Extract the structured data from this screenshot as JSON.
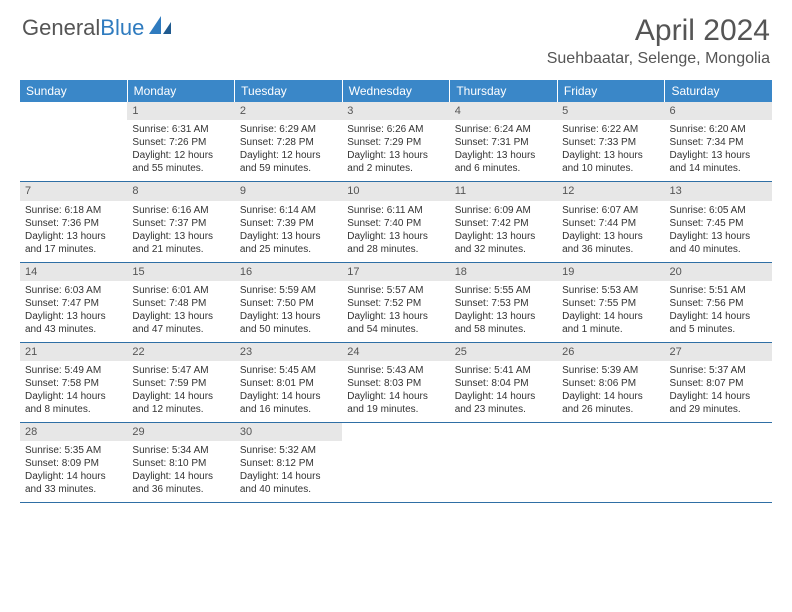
{
  "logo": {
    "text1": "General",
    "text2": "Blue"
  },
  "title": "April 2024",
  "location": "Suehbaatar, Selenge, Mongolia",
  "colors": {
    "header_bg": "#3a87c8",
    "header_text": "#ffffff",
    "daynum_bg": "#e7e7e7",
    "week_border": "#2f6fa5",
    "logo_gray": "#555555",
    "logo_blue": "#2f7bbf"
  },
  "day_names": [
    "Sunday",
    "Monday",
    "Tuesday",
    "Wednesday",
    "Thursday",
    "Friday",
    "Saturday"
  ],
  "weeks": [
    [
      {
        "n": "",
        "sun": "",
        "set": "",
        "dl": ""
      },
      {
        "n": "1",
        "sun": "Sunrise: 6:31 AM",
        "set": "Sunset: 7:26 PM",
        "dl": "Daylight: 12 hours and 55 minutes."
      },
      {
        "n": "2",
        "sun": "Sunrise: 6:29 AM",
        "set": "Sunset: 7:28 PM",
        "dl": "Daylight: 12 hours and 59 minutes."
      },
      {
        "n": "3",
        "sun": "Sunrise: 6:26 AM",
        "set": "Sunset: 7:29 PM",
        "dl": "Daylight: 13 hours and 2 minutes."
      },
      {
        "n": "4",
        "sun": "Sunrise: 6:24 AM",
        "set": "Sunset: 7:31 PM",
        "dl": "Daylight: 13 hours and 6 minutes."
      },
      {
        "n": "5",
        "sun": "Sunrise: 6:22 AM",
        "set": "Sunset: 7:33 PM",
        "dl": "Daylight: 13 hours and 10 minutes."
      },
      {
        "n": "6",
        "sun": "Sunrise: 6:20 AM",
        "set": "Sunset: 7:34 PM",
        "dl": "Daylight: 13 hours and 14 minutes."
      }
    ],
    [
      {
        "n": "7",
        "sun": "Sunrise: 6:18 AM",
        "set": "Sunset: 7:36 PM",
        "dl": "Daylight: 13 hours and 17 minutes."
      },
      {
        "n": "8",
        "sun": "Sunrise: 6:16 AM",
        "set": "Sunset: 7:37 PM",
        "dl": "Daylight: 13 hours and 21 minutes."
      },
      {
        "n": "9",
        "sun": "Sunrise: 6:14 AM",
        "set": "Sunset: 7:39 PM",
        "dl": "Daylight: 13 hours and 25 minutes."
      },
      {
        "n": "10",
        "sun": "Sunrise: 6:11 AM",
        "set": "Sunset: 7:40 PM",
        "dl": "Daylight: 13 hours and 28 minutes."
      },
      {
        "n": "11",
        "sun": "Sunrise: 6:09 AM",
        "set": "Sunset: 7:42 PM",
        "dl": "Daylight: 13 hours and 32 minutes."
      },
      {
        "n": "12",
        "sun": "Sunrise: 6:07 AM",
        "set": "Sunset: 7:44 PM",
        "dl": "Daylight: 13 hours and 36 minutes."
      },
      {
        "n": "13",
        "sun": "Sunrise: 6:05 AM",
        "set": "Sunset: 7:45 PM",
        "dl": "Daylight: 13 hours and 40 minutes."
      }
    ],
    [
      {
        "n": "14",
        "sun": "Sunrise: 6:03 AM",
        "set": "Sunset: 7:47 PM",
        "dl": "Daylight: 13 hours and 43 minutes."
      },
      {
        "n": "15",
        "sun": "Sunrise: 6:01 AM",
        "set": "Sunset: 7:48 PM",
        "dl": "Daylight: 13 hours and 47 minutes."
      },
      {
        "n": "16",
        "sun": "Sunrise: 5:59 AM",
        "set": "Sunset: 7:50 PM",
        "dl": "Daylight: 13 hours and 50 minutes."
      },
      {
        "n": "17",
        "sun": "Sunrise: 5:57 AM",
        "set": "Sunset: 7:52 PM",
        "dl": "Daylight: 13 hours and 54 minutes."
      },
      {
        "n": "18",
        "sun": "Sunrise: 5:55 AM",
        "set": "Sunset: 7:53 PM",
        "dl": "Daylight: 13 hours and 58 minutes."
      },
      {
        "n": "19",
        "sun": "Sunrise: 5:53 AM",
        "set": "Sunset: 7:55 PM",
        "dl": "Daylight: 14 hours and 1 minute."
      },
      {
        "n": "20",
        "sun": "Sunrise: 5:51 AM",
        "set": "Sunset: 7:56 PM",
        "dl": "Daylight: 14 hours and 5 minutes."
      }
    ],
    [
      {
        "n": "21",
        "sun": "Sunrise: 5:49 AM",
        "set": "Sunset: 7:58 PM",
        "dl": "Daylight: 14 hours and 8 minutes."
      },
      {
        "n": "22",
        "sun": "Sunrise: 5:47 AM",
        "set": "Sunset: 7:59 PM",
        "dl": "Daylight: 14 hours and 12 minutes."
      },
      {
        "n": "23",
        "sun": "Sunrise: 5:45 AM",
        "set": "Sunset: 8:01 PM",
        "dl": "Daylight: 14 hours and 16 minutes."
      },
      {
        "n": "24",
        "sun": "Sunrise: 5:43 AM",
        "set": "Sunset: 8:03 PM",
        "dl": "Daylight: 14 hours and 19 minutes."
      },
      {
        "n": "25",
        "sun": "Sunrise: 5:41 AM",
        "set": "Sunset: 8:04 PM",
        "dl": "Daylight: 14 hours and 23 minutes."
      },
      {
        "n": "26",
        "sun": "Sunrise: 5:39 AM",
        "set": "Sunset: 8:06 PM",
        "dl": "Daylight: 14 hours and 26 minutes."
      },
      {
        "n": "27",
        "sun": "Sunrise: 5:37 AM",
        "set": "Sunset: 8:07 PM",
        "dl": "Daylight: 14 hours and 29 minutes."
      }
    ],
    [
      {
        "n": "28",
        "sun": "Sunrise: 5:35 AM",
        "set": "Sunset: 8:09 PM",
        "dl": "Daylight: 14 hours and 33 minutes."
      },
      {
        "n": "29",
        "sun": "Sunrise: 5:34 AM",
        "set": "Sunset: 8:10 PM",
        "dl": "Daylight: 14 hours and 36 minutes."
      },
      {
        "n": "30",
        "sun": "Sunrise: 5:32 AM",
        "set": "Sunset: 8:12 PM",
        "dl": "Daylight: 14 hours and 40 minutes."
      },
      {
        "n": "",
        "sun": "",
        "set": "",
        "dl": ""
      },
      {
        "n": "",
        "sun": "",
        "set": "",
        "dl": ""
      },
      {
        "n": "",
        "sun": "",
        "set": "",
        "dl": ""
      },
      {
        "n": "",
        "sun": "",
        "set": "",
        "dl": ""
      }
    ]
  ]
}
